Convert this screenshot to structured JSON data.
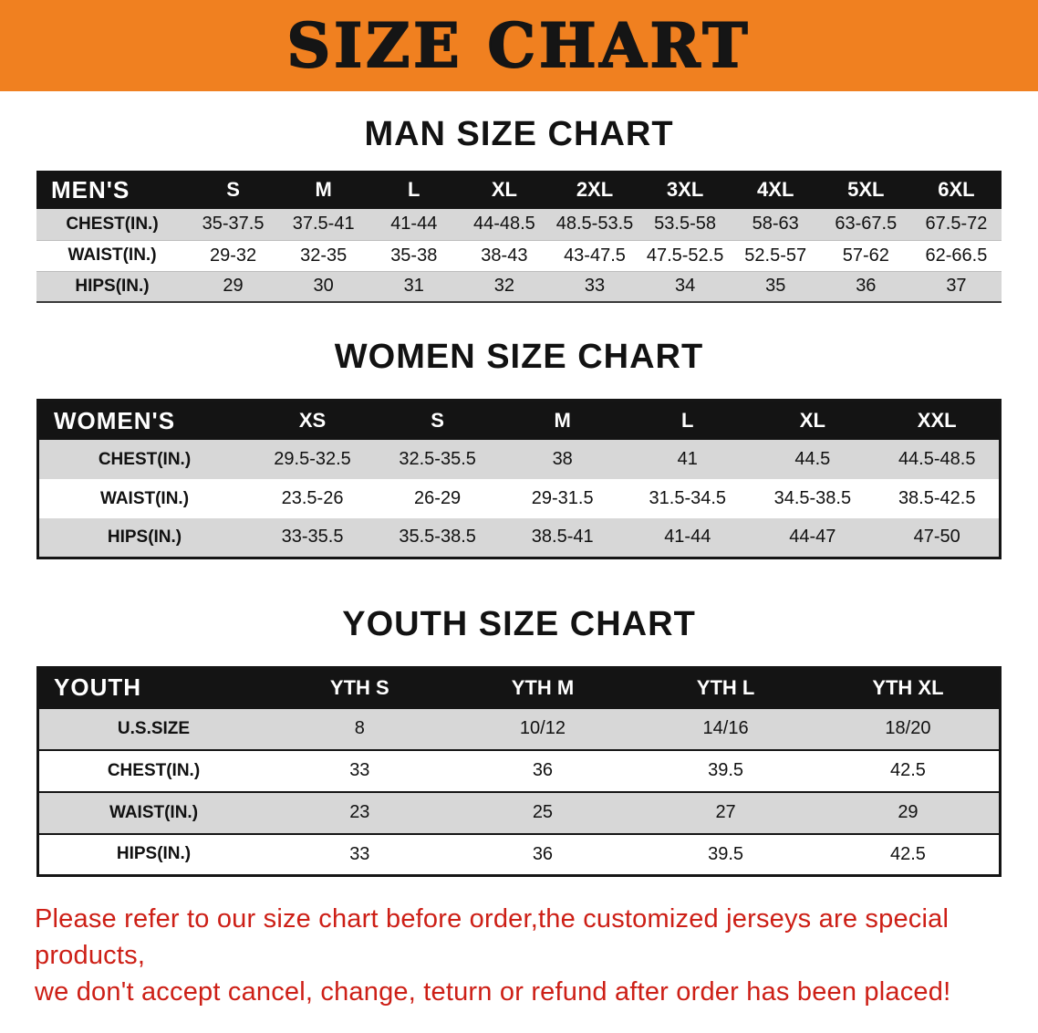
{
  "banner": {
    "title": "SIZE CHART",
    "bg_color": "#f08020",
    "text_color": "#151515"
  },
  "colors": {
    "table_header_bg": "#141414",
    "row_stripe_gray": "#d7d7d7",
    "note_red": "#cd1f16"
  },
  "sections": [
    {
      "id": "men",
      "heading": "MAN SIZE CHART",
      "table": {
        "header_label": "MEN'S",
        "columns": [
          "S",
          "M",
          "L",
          "XL",
          "2XL",
          "3XL",
          "4XL",
          "5XL",
          "6XL"
        ],
        "rows": [
          {
            "label": "CHEST(IN.)",
            "values": [
              "35-37.5",
              "37.5-41",
              "41-44",
              "44-48.5",
              "48.5-53.5",
              "53.5-58",
              "58-63",
              "63-67.5",
              "67.5-72"
            ]
          },
          {
            "label": "WAIST(IN.)",
            "values": [
              "29-32",
              "32-35",
              "35-38",
              "38-43",
              "43-47.5",
              "47.5-52.5",
              "52.5-57",
              "57-62",
              "62-66.5"
            ]
          },
          {
            "label": "HIPS(IN.)",
            "values": [
              "29",
              "30",
              "31",
              "32",
              "33",
              "34",
              "35",
              "36",
              "37"
            ]
          }
        ]
      }
    },
    {
      "id": "women",
      "heading": "WOMEN SIZE CHART",
      "table": {
        "header_label": "WOMEN'S",
        "columns": [
          "XS",
          "S",
          "M",
          "L",
          "XL",
          "XXL"
        ],
        "rows": [
          {
            "label": "CHEST(IN.)",
            "values": [
              "29.5-32.5",
              "32.5-35.5",
              "38",
              "41",
              "44.5",
              "44.5-48.5"
            ]
          },
          {
            "label": "WAIST(IN.)",
            "values": [
              "23.5-26",
              "26-29",
              "29-31.5",
              "31.5-34.5",
              "34.5-38.5",
              "38.5-42.5"
            ]
          },
          {
            "label": "HIPS(IN.)",
            "values": [
              "33-35.5",
              "35.5-38.5",
              "38.5-41",
              "41-44",
              "44-47",
              "47-50"
            ]
          }
        ]
      }
    },
    {
      "id": "youth",
      "heading": "YOUTH SIZE CHART",
      "table": {
        "header_label": "YOUTH",
        "columns": [
          "YTH S",
          "YTH M",
          "YTH L",
          "YTH XL"
        ],
        "rows": [
          {
            "label": "U.S.SIZE",
            "values": [
              "8",
              "10/12",
              "14/16",
              "18/20"
            ]
          },
          {
            "label": "CHEST(IN.)",
            "values": [
              "33",
              "36",
              "39.5",
              "42.5"
            ]
          },
          {
            "label": "WAIST(IN.)",
            "values": [
              "23",
              "25",
              "27",
              "29"
            ]
          },
          {
            "label": "HIPS(IN.)",
            "values": [
              "33",
              "36",
              "39.5",
              "42.5"
            ]
          }
        ]
      }
    }
  ],
  "note": {
    "lines": [
      "Please refer to our size chart before order,the customized jerseys are special products,",
      "we don't accept cancel, change, teturn or refund after order has been placed!"
    ]
  }
}
